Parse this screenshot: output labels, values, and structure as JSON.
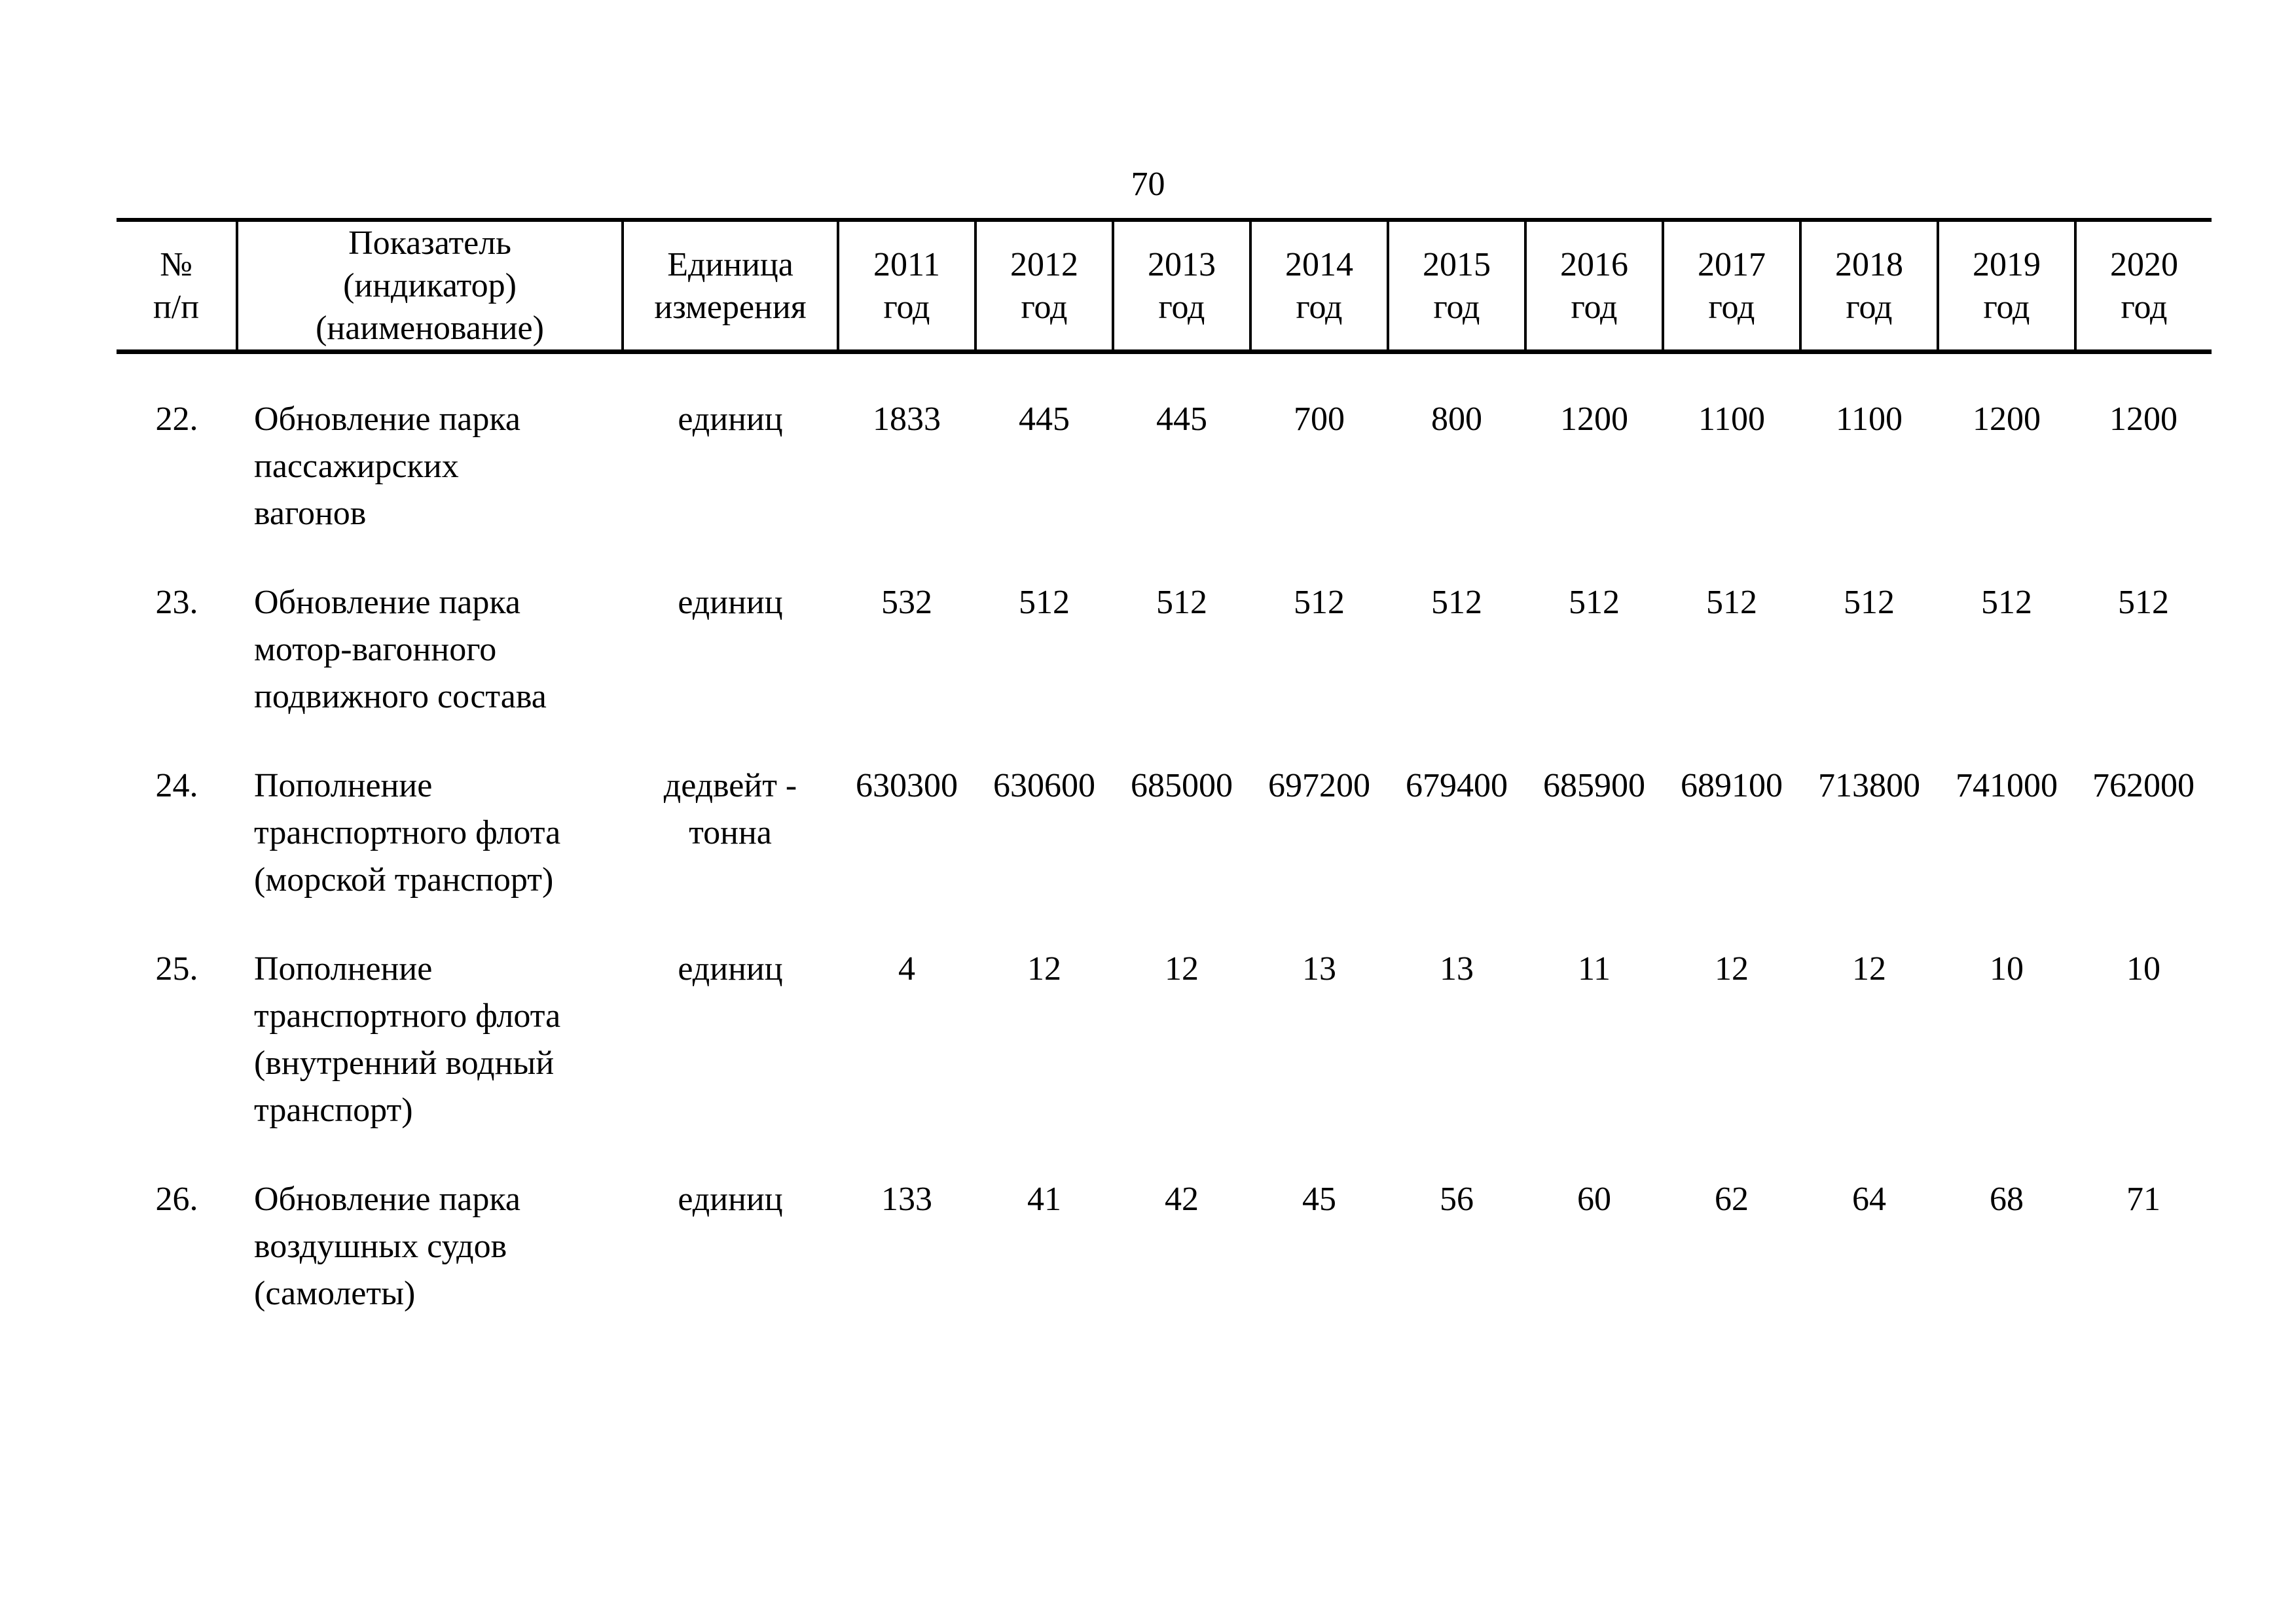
{
  "page": {
    "number": "70"
  },
  "table": {
    "header": {
      "num_lines": [
        "№",
        "п/п"
      ],
      "indicator_lines": [
        "Показатель",
        "(индикатор)",
        "(наименование)"
      ],
      "unit_lines": [
        "Единица",
        "измерения"
      ],
      "years": [
        "2011",
        "2012",
        "2013",
        "2014",
        "2015",
        "2016",
        "2017",
        "2018",
        "2019",
        "2020"
      ],
      "year_word": "год"
    },
    "rows": [
      {
        "num": "22.",
        "name_lines": [
          "Обновление парка",
          "пассажирских",
          "вагонов"
        ],
        "unit_lines": [
          "единиц"
        ],
        "values": [
          "1833",
          "445",
          "445",
          "700",
          "800",
          "1200",
          "1100",
          "1100",
          "1200",
          "1200"
        ]
      },
      {
        "num": "23.",
        "name_lines": [
          "Обновление парка",
          "мотор-вагонного",
          "подвижного состава"
        ],
        "unit_lines": [
          "единиц"
        ],
        "values": [
          "532",
          "512",
          "512",
          "512",
          "512",
          "512",
          "512",
          "512",
          "512",
          "512"
        ]
      },
      {
        "num": "24.",
        "name_lines": [
          "Пополнение",
          "транспортного флота",
          "(морской транспорт)"
        ],
        "unit_lines": [
          "дедвейт -",
          "тонна"
        ],
        "values": [
          "630300",
          "630600",
          "685000",
          "697200",
          "679400",
          "685900",
          "689100",
          "713800",
          "741000",
          "762000"
        ]
      },
      {
        "num": "25.",
        "name_lines": [
          "Пополнение",
          "транспортного флота",
          "(внутренний водный",
          "транспорт)"
        ],
        "unit_lines": [
          "единиц"
        ],
        "values": [
          "4",
          "12",
          "12",
          "13",
          "13",
          "11",
          "12",
          "12",
          "10",
          "10"
        ]
      },
      {
        "num": "26.",
        "name_lines": [
          "Обновление парка",
          "воздушных судов",
          "(самолеты)"
        ],
        "unit_lines": [
          "единиц"
        ],
        "values": [
          "133",
          "41",
          "42",
          "45",
          "56",
          "60",
          "62",
          "64",
          "68",
          "71"
        ]
      }
    ]
  }
}
